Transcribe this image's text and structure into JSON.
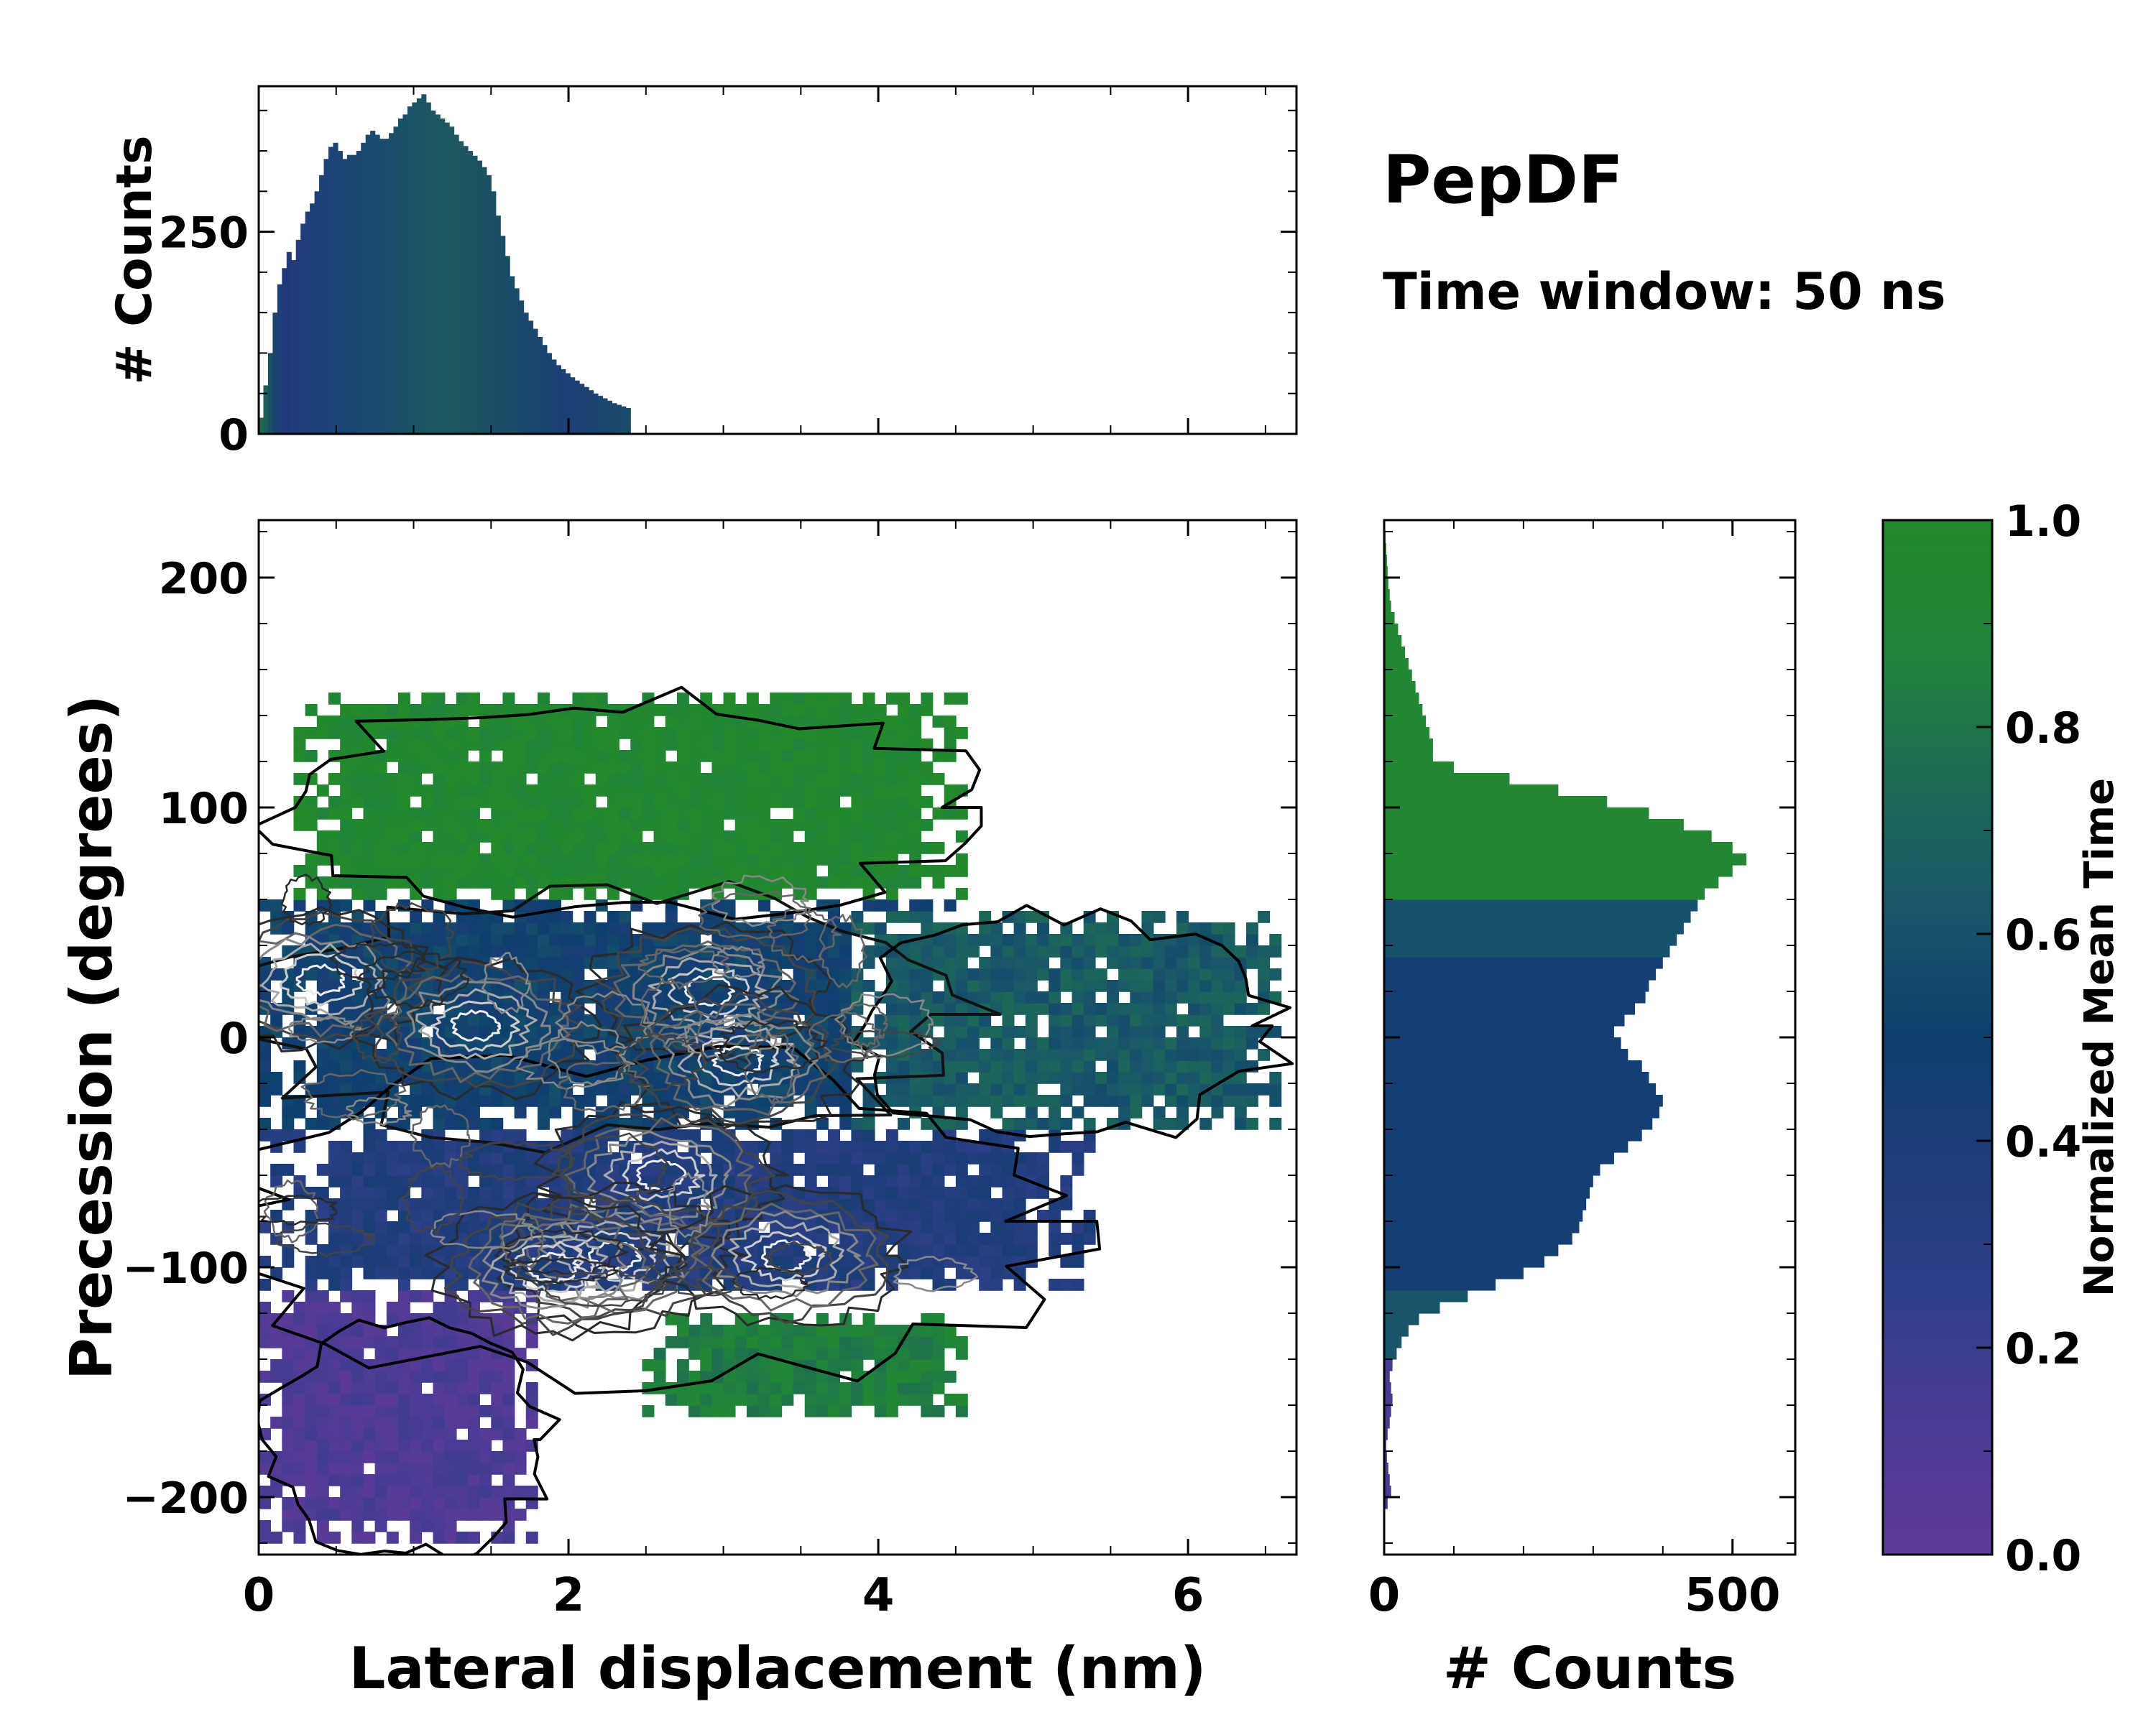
{
  "title": "PepDF",
  "subtitle": "Time window: 50 ns",
  "chart_data": [
    {
      "id": "top_histogram",
      "type": "bar",
      "ylabel": "# Counts",
      "xlim": [
        0,
        6.7
      ],
      "ylim": [
        0,
        430
      ],
      "yticks": [
        0,
        250
      ],
      "bin_width": 0.03,
      "values": [
        20,
        60,
        100,
        150,
        185,
        205,
        225,
        215,
        240,
        260,
        275,
        285,
        300,
        320,
        340,
        355,
        360,
        350,
        340,
        345,
        345,
        350,
        360,
        370,
        375,
        370,
        365,
        365,
        372,
        380,
        390,
        395,
        405,
        410,
        415,
        420,
        410,
        400,
        395,
        390,
        385,
        380,
        370,
        362,
        356,
        350,
        344,
        338,
        330,
        320,
        300,
        270,
        245,
        220,
        195,
        180,
        165,
        150,
        140,
        130,
        120,
        110,
        100,
        92,
        85,
        80,
        75,
        70,
        66,
        62,
        58,
        54,
        50,
        47,
        44,
        41,
        38,
        36,
        34,
        32
      ],
      "colors": [
        "#1f6b4a",
        "#1e5f58",
        "#1a4f66",
        "#1a456f",
        "#1b3f77",
        "#1e3a7a",
        "#21397c",
        "#233a7c",
        "#233b7b",
        "#223c7b",
        "#203e7a",
        "#1f3f7a",
        "#1e4079",
        "#1e4178",
        "#1d4278",
        "#1d4377",
        "#1c4476",
        "#1c4475",
        "#1c4574",
        "#1c4673",
        "#1c4672",
        "#1c4771",
        "#1b4870",
        "#1b4970",
        "#1b4a6f",
        "#1b4b6e",
        "#1b4c6d",
        "#1b4d6c",
        "#1b4e6b",
        "#1b4f6a",
        "#1b5069",
        "#1b5168",
        "#1b5267",
        "#1b5366",
        "#1b5465",
        "#1b5564",
        "#1b5663",
        "#1c5762",
        "#1c5761",
        "#1c5861",
        "#1c5860",
        "#1c5860",
        "#1c575f",
        "#1c565f",
        "#1c5560",
        "#1c5460",
        "#1b5361",
        "#1b5262",
        "#1b5163",
        "#1b5064",
        "#1b4f65",
        "#1b4e66",
        "#1b4d67",
        "#1b4c68",
        "#1b4b69",
        "#1b4a6a",
        "#1b496b",
        "#1b486c",
        "#1b476d",
        "#1b466e",
        "#1b456f",
        "#1b4470",
        "#1b4371",
        "#1b4272",
        "#1b4173",
        "#1b4074",
        "#1c3f75",
        "#1c3f75",
        "#1c4074",
        "#1c4173",
        "#1c4272",
        "#1c4371",
        "#1c4470",
        "#1c456f",
        "#1c466e",
        "#1c476d",
        "#1c486c",
        "#1c496b",
        "#1c4a6a",
        "#1c4b69"
      ],
      "xlabel": ""
    },
    {
      "id": "main_heatmap",
      "type": "heatmap",
      "xlabel": "Lateral displacement (nm)",
      "ylabel": "Precession (degrees)",
      "xlim": [
        0,
        6.7
      ],
      "ylim": [
        -225,
        225
      ],
      "xticks": [
        0,
        2,
        4,
        6
      ],
      "yticks": [
        -200,
        -100,
        0,
        100,
        200
      ],
      "ytick_labels": [
        "−200",
        "−100",
        "0",
        "100",
        "200"
      ],
      "regions": [
        {
          "name": "upper",
          "mean_time": 0.95,
          "x": [
            0.2,
            4.6
          ],
          "y": [
            60,
            150
          ]
        },
        {
          "name": "center",
          "mean_time": 0.5,
          "x": [
            0,
            4.5
          ],
          "y": [
            -40,
            60
          ]
        },
        {
          "name": "right-tail",
          "mean_time": 0.65,
          "x": [
            3.8,
            6.6
          ],
          "y": [
            -40,
            55
          ]
        },
        {
          "name": "lower-center",
          "mean_time": 0.35,
          "x": [
            0,
            5.4
          ],
          "y": [
            -110,
            -40
          ]
        },
        {
          "name": "lower-green",
          "mean_time": 0.85,
          "x": [
            2.5,
            4.6
          ],
          "y": [
            -165,
            -120
          ]
        },
        {
          "name": "lower-purple",
          "mean_time": 0.1,
          "x": [
            0,
            1.8
          ],
          "y": [
            -220,
            -110
          ]
        }
      ]
    },
    {
      "id": "right_histogram",
      "type": "bar",
      "orientation": "horizontal",
      "xlabel": "# Counts",
      "xlim": [
        0,
        590
      ],
      "xticks": [
        0,
        500
      ],
      "ylim": [
        -225,
        225
      ],
      "bin_width": 5,
      "values": [
        0,
        0,
        0,
        0,
        5,
        10,
        8,
        6,
        4,
        3,
        5,
        8,
        10,
        12,
        10,
        8,
        12,
        18,
        25,
        35,
        50,
        80,
        120,
        160,
        200,
        230,
        250,
        270,
        280,
        285,
        290,
        295,
        300,
        310,
        330,
        350,
        370,
        385,
        395,
        400,
        390,
        380,
        370,
        350,
        340,
        330,
        345,
        360,
        375,
        380,
        390,
        400,
        410,
        420,
        430,
        440,
        450,
        460,
        480,
        500,
        520,
        500,
        470,
        430,
        380,
        320,
        250,
        180,
        100,
        70,
        70,
        65,
        60,
        55,
        50,
        45,
        40,
        35,
        30,
        25,
        20,
        15,
        10,
        8,
        6,
        5,
        4,
        3,
        2,
        1
      ],
      "ylabel": ""
    },
    {
      "id": "colorbar",
      "type": "colorbar",
      "label": "Normalized Mean Time",
      "range": [
        0,
        1
      ],
      "ticks": [
        0.0,
        0.2,
        0.4,
        0.6,
        0.8,
        1.0
      ],
      "tick_labels": [
        "0.0",
        "0.2",
        "0.4",
        "0.6",
        "0.8",
        "1.0"
      ],
      "colors": [
        "#5e3a98",
        "#4b3b94",
        "#2f3f8a",
        "#1f3d7a",
        "#0e3f6d",
        "#19566a",
        "#1d6b54",
        "#21843a",
        "#23892a"
      ]
    }
  ]
}
